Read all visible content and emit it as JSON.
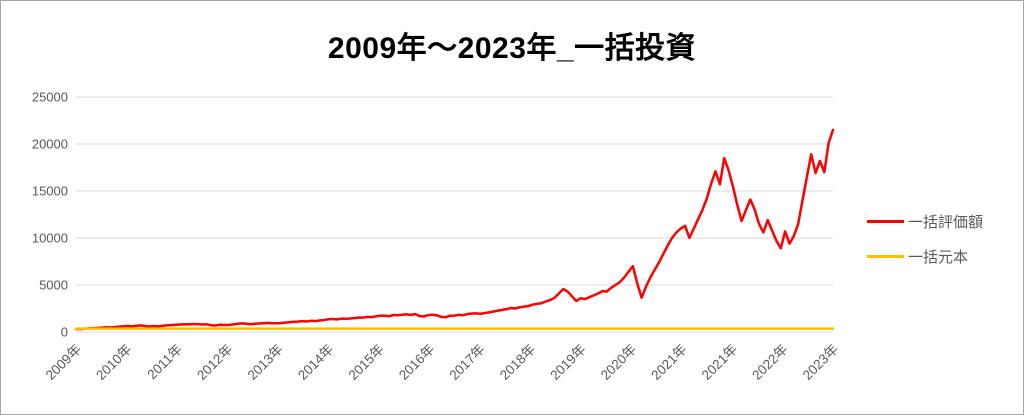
{
  "title": "2009年～2023年_一括投資",
  "colors": {
    "series_red": "#ff0000",
    "series_gold": "#ffc000",
    "gridline": "#d9d9d9",
    "axis_text": "#595959",
    "title_text": "#000000",
    "frame_border": "#a6a6a6",
    "background": "#ffffff"
  },
  "legend": {
    "items": [
      {
        "label": "一括評価額",
        "color": "#ff0000"
      },
      {
        "label": "一括元本",
        "color": "#ffc000"
      }
    ]
  },
  "chart_data": {
    "type": "line",
    "title": "2009年～2023年_一括投資",
    "xlabel": "",
    "ylabel": "",
    "ylim": [
      0,
      25000
    ],
    "y_ticks": [
      0,
      5000,
      10000,
      15000,
      20000,
      25000
    ],
    "grid": "horizontal",
    "legend_position": "right",
    "x_tick_labels": [
      "2009年",
      "2010年",
      "2011年",
      "2012年",
      "2013年",
      "2014年",
      "2015年",
      "2016年",
      "2017年",
      "2018年",
      "2019年",
      "2020年",
      "2021年",
      "2021年",
      "2022年",
      "2023年"
    ],
    "series": [
      {
        "name": "一括評価額",
        "color": "#ff0000",
        "values": [
          330,
          310,
          345,
          385,
          410,
          440,
          470,
          500,
          480,
          530,
          570,
          610,
          640,
          600,
          660,
          700,
          630,
          590,
          640,
          600,
          660,
          710,
          730,
          780,
          800,
          820,
          810,
          850,
          840,
          800,
          820,
          720,
          690,
          770,
          760,
          740,
          800,
          860,
          910,
          890,
          820,
          870,
          900,
          940,
          970,
          940,
          930,
          950,
          1000,
          1040,
          1080,
          1110,
          1160,
          1120,
          1190,
          1160,
          1220,
          1280,
          1350,
          1380,
          1340,
          1430,
          1410,
          1440,
          1480,
          1540,
          1530,
          1610,
          1590,
          1670,
          1750,
          1730,
          1680,
          1810,
          1790,
          1830,
          1870,
          1820,
          1900,
          1690,
          1660,
          1800,
          1830,
          1770,
          1610,
          1570,
          1730,
          1750,
          1830,
          1790,
          1920,
          1970,
          1980,
          1940,
          2020,
          2080,
          2180,
          2280,
          2350,
          2440,
          2550,
          2500,
          2640,
          2700,
          2770,
          2920,
          3000,
          3060,
          3250,
          3400,
          3650,
          4100,
          4570,
          4300,
          3800,
          3300,
          3600,
          3500,
          3700,
          3900,
          4100,
          4350,
          4300,
          4700,
          5000,
          5300,
          5800,
          6400,
          7000,
          5200,
          3650,
          4800,
          5800,
          6600,
          7400,
          8300,
          9200,
          10000,
          10600,
          11000,
          11300,
          10000,
          11000,
          12000,
          13000,
          14200,
          15800,
          17100,
          15700,
          18500,
          17200,
          15500,
          13500,
          11800,
          13000,
          14100,
          13000,
          11500,
          10600,
          11900,
          10800,
          9700,
          8900,
          10700,
          9400,
          10200,
          11500,
          14000,
          16500,
          18900,
          16900,
          18200,
          17000,
          20100,
          21500
        ]
      },
      {
        "name": "一括元本",
        "color": "#ffc000",
        "flat_value": 360
      }
    ]
  }
}
